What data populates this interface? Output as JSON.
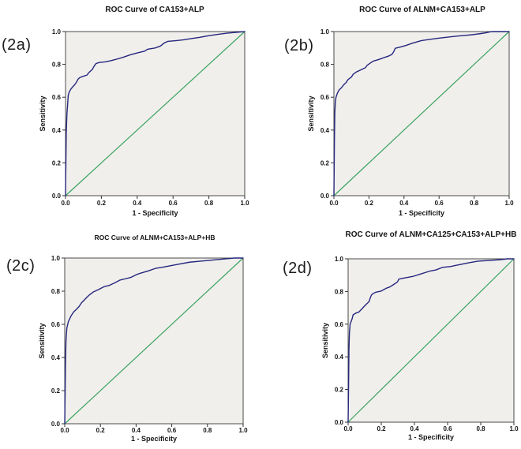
{
  "figure": {
    "background": "#ffffff",
    "text_color": "#141414",
    "plot_background": "#f0efec",
    "plot_border_color": "#4b4b4b",
    "roc_color": "#26267e",
    "reference_color": "#3aa35f"
  },
  "chart_data": [
    {
      "id": "2a",
      "panel_label": "(2a)",
      "type": "line",
      "title": "ROC Curve of CA153+ALP",
      "xlabel": "1 - Specificity",
      "ylabel": "Sensitivity",
      "xlim": [
        0,
        1
      ],
      "ylim": [
        0,
        1
      ],
      "xticks": [
        "0.0",
        "0.2",
        "0.4",
        "0.6",
        "0.8",
        "1.0"
      ],
      "yticks": [
        "0.0",
        "0.2",
        "0.4",
        "0.6",
        "0.8",
        "1.0"
      ],
      "grid": false,
      "legend": "none",
      "series": [
        {
          "name": "roc-curve",
          "color": "#26267e",
          "points": [
            [
              0,
              0
            ],
            [
              0.004,
              0.38
            ],
            [
              0.006,
              0.44
            ],
            [
              0.008,
              0.5
            ],
            [
              0.012,
              0.56
            ],
            [
              0.015,
              0.61
            ],
            [
              0.02,
              0.63
            ],
            [
              0.03,
              0.65
            ],
            [
              0.04,
              0.663
            ],
            [
              0.05,
              0.675
            ],
            [
              0.06,
              0.69
            ],
            [
              0.07,
              0.71
            ],
            [
              0.08,
              0.72
            ],
            [
              0.1,
              0.728
            ],
            [
              0.12,
              0.735
            ],
            [
              0.13,
              0.75
            ],
            [
              0.15,
              0.77
            ],
            [
              0.16,
              0.79
            ],
            [
              0.17,
              0.805
            ],
            [
              0.19,
              0.812
            ],
            [
              0.22,
              0.815
            ],
            [
              0.25,
              0.822
            ],
            [
              0.28,
              0.83
            ],
            [
              0.32,
              0.843
            ],
            [
              0.36,
              0.858
            ],
            [
              0.4,
              0.87
            ],
            [
              0.44,
              0.88
            ],
            [
              0.46,
              0.893
            ],
            [
              0.5,
              0.9
            ],
            [
              0.53,
              0.912
            ],
            [
              0.55,
              0.93
            ],
            [
              0.57,
              0.94
            ],
            [
              0.62,
              0.945
            ],
            [
              0.66,
              0.95
            ],
            [
              0.7,
              0.957
            ],
            [
              0.75,
              0.965
            ],
            [
              0.8,
              0.975
            ],
            [
              0.85,
              0.983
            ],
            [
              0.9,
              0.99
            ],
            [
              0.95,
              0.995
            ],
            [
              1,
              1
            ]
          ]
        },
        {
          "name": "reference-line",
          "color": "#3aa35f",
          "points": [
            [
              0,
              0
            ],
            [
              1,
              1
            ]
          ]
        }
      ]
    },
    {
      "id": "2b",
      "panel_label": "(2b)",
      "type": "line",
      "title": "ROC Curve of ALNM+CA153+ALP",
      "xlabel": "1 - Specificity",
      "ylabel": "Sensitivity",
      "xlim": [
        0,
        1
      ],
      "ylim": [
        0,
        1
      ],
      "xticks": [
        "0.0",
        "0.2",
        "0.4",
        "0.6",
        "0.8",
        "1.0"
      ],
      "yticks": [
        "0.0",
        "0.2",
        "0.4",
        "0.6",
        "0.8",
        "1.0"
      ],
      "grid": false,
      "legend": "none",
      "series": [
        {
          "name": "roc-curve",
          "color": "#26267e",
          "points": [
            [
              0,
              0
            ],
            [
              0.003,
              0.35
            ],
            [
              0.005,
              0.5
            ],
            [
              0.008,
              0.57
            ],
            [
              0.012,
              0.6
            ],
            [
              0.02,
              0.625
            ],
            [
              0.03,
              0.645
            ],
            [
              0.045,
              0.66
            ],
            [
              0.055,
              0.675
            ],
            [
              0.07,
              0.69
            ],
            [
              0.08,
              0.707
            ],
            [
              0.1,
              0.723
            ],
            [
              0.11,
              0.74
            ],
            [
              0.13,
              0.755
            ],
            [
              0.16,
              0.77
            ],
            [
              0.18,
              0.78
            ],
            [
              0.19,
              0.795
            ],
            [
              0.21,
              0.81
            ],
            [
              0.225,
              0.82
            ],
            [
              0.25,
              0.828
            ],
            [
              0.27,
              0.835
            ],
            [
              0.29,
              0.843
            ],
            [
              0.31,
              0.85
            ],
            [
              0.33,
              0.86
            ],
            [
              0.34,
              0.875
            ],
            [
              0.35,
              0.898
            ],
            [
              0.38,
              0.906
            ],
            [
              0.41,
              0.915
            ],
            [
              0.45,
              0.93
            ],
            [
              0.5,
              0.945
            ],
            [
              0.55,
              0.953
            ],
            [
              0.6,
              0.96
            ],
            [
              0.65,
              0.966
            ],
            [
              0.7,
              0.972
            ],
            [
              0.75,
              0.977
            ],
            [
              0.8,
              0.982
            ],
            [
              0.84,
              0.988
            ],
            [
              0.87,
              0.993
            ],
            [
              0.9,
              1
            ],
            [
              1,
              1
            ]
          ]
        },
        {
          "name": "reference-line",
          "color": "#3aa35f",
          "points": [
            [
              0,
              0
            ],
            [
              1,
              1
            ]
          ]
        }
      ]
    },
    {
      "id": "2c",
      "panel_label": "(2c)",
      "type": "line",
      "title": "ROC Curve of ALNM+CA153+ALP+HB",
      "xlabel": "1 - Specificity",
      "ylabel": "Sensitivity",
      "xlim": [
        0,
        1
      ],
      "ylim": [
        0,
        1
      ],
      "xticks": [
        "0.0",
        "0.2",
        "0.4",
        "0.6",
        "0.8",
        "1.0"
      ],
      "yticks": [
        "0.0",
        "0.2",
        "0.4",
        "0.6",
        "0.8",
        "1.0"
      ],
      "grid": false,
      "legend": "none",
      "series": [
        {
          "name": "roc-curve",
          "color": "#26267e",
          "points": [
            [
              0,
              0
            ],
            [
              0.004,
              0.35
            ],
            [
              0.007,
              0.5
            ],
            [
              0.01,
              0.55
            ],
            [
              0.012,
              0.578
            ],
            [
              0.02,
              0.615
            ],
            [
              0.035,
              0.65
            ],
            [
              0.05,
              0.675
            ],
            [
              0.065,
              0.69
            ],
            [
              0.08,
              0.707
            ],
            [
              0.094,
              0.73
            ],
            [
              0.11,
              0.747
            ],
            [
              0.124,
              0.763
            ],
            [
              0.14,
              0.779
            ],
            [
              0.16,
              0.795
            ],
            [
              0.19,
              0.81
            ],
            [
              0.22,
              0.827
            ],
            [
              0.25,
              0.835
            ],
            [
              0.28,
              0.85
            ],
            [
              0.31,
              0.867
            ],
            [
              0.34,
              0.875
            ],
            [
              0.37,
              0.883
            ],
            [
              0.4,
              0.899
            ],
            [
              0.42,
              0.907
            ],
            [
              0.47,
              0.923
            ],
            [
              0.51,
              0.938
            ],
            [
              0.55,
              0.945
            ],
            [
              0.6,
              0.955
            ],
            [
              0.65,
              0.965
            ],
            [
              0.7,
              0.975
            ],
            [
              0.75,
              0.98
            ],
            [
              0.8,
              0.985
            ],
            [
              0.85,
              0.99
            ],
            [
              0.9,
              0.995
            ],
            [
              0.95,
              1
            ],
            [
              1,
              1
            ]
          ]
        },
        {
          "name": "reference-line",
          "color": "#3aa35f",
          "points": [
            [
              0,
              0
            ],
            [
              1,
              1
            ]
          ]
        }
      ]
    },
    {
      "id": "2d",
      "panel_label": "(2d)",
      "type": "line",
      "title": "ROC Curve of ALNM+CA125+CA153+ALP+HB",
      "xlabel": "1 - Specificity",
      "ylabel": "Sensitivity",
      "xlim": [
        0,
        1
      ],
      "ylim": [
        0,
        1
      ],
      "xticks": [
        "0.0",
        "0.2",
        "0.4",
        "0.6",
        "0.8",
        "1.0"
      ],
      "yticks": [
        "0.0",
        "0.2",
        "0.4",
        "0.6",
        "0.8",
        "1.0"
      ],
      "grid": false,
      "legend": "none",
      "series": [
        {
          "name": "roc-curve",
          "color": "#26267e",
          "points": [
            [
              0,
              0
            ],
            [
              0.003,
              0.25
            ],
            [
              0.005,
              0.45
            ],
            [
              0.008,
              0.55
            ],
            [
              0.012,
              0.6
            ],
            [
              0.024,
              0.632
            ],
            [
              0.03,
              0.657
            ],
            [
              0.047,
              0.668
            ],
            [
              0.063,
              0.673
            ],
            [
              0.08,
              0.69
            ],
            [
              0.094,
              0.706
            ],
            [
              0.11,
              0.722
            ],
            [
              0.126,
              0.738
            ],
            [
              0.134,
              0.762
            ],
            [
              0.141,
              0.779
            ],
            [
              0.15,
              0.787
            ],
            [
              0.165,
              0.795
            ],
            [
              0.2,
              0.803
            ],
            [
              0.228,
              0.819
            ],
            [
              0.25,
              0.827
            ],
            [
              0.275,
              0.843
            ],
            [
              0.298,
              0.859
            ],
            [
              0.306,
              0.876
            ],
            [
              0.345,
              0.884
            ],
            [
              0.39,
              0.892
            ],
            [
              0.44,
              0.908
            ],
            [
              0.49,
              0.924
            ],
            [
              0.53,
              0.932
            ],
            [
              0.57,
              0.948
            ],
            [
              0.62,
              0.953
            ],
            [
              0.65,
              0.96
            ],
            [
              0.7,
              0.97
            ],
            [
              0.73,
              0.976
            ],
            [
              0.78,
              0.985
            ],
            [
              0.85,
              0.99
            ],
            [
              0.92,
              0.995
            ],
            [
              0.96,
              1
            ],
            [
              1,
              1
            ]
          ]
        },
        {
          "name": "reference-line",
          "color": "#3aa35f",
          "points": [
            [
              0,
              0
            ],
            [
              1,
              1
            ]
          ]
        }
      ]
    }
  ]
}
